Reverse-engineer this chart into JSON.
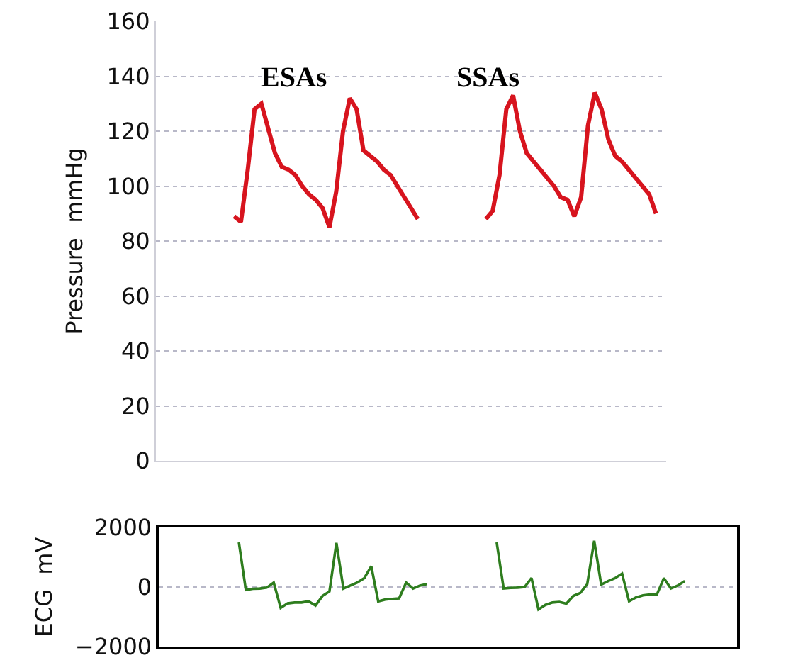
{
  "chart_data": [
    {
      "type": "line",
      "ylabel": "Pressure  mmHg",
      "categories": [
        null,
        null,
        null,
        null,
        null,
        null,
        null,
        null,
        null,
        null,
        null,
        null,
        null,
        null,
        null,
        null,
        null,
        null,
        null,
        null,
        null,
        null,
        null,
        null,
        null,
        null,
        null,
        null,
        null,
        null,
        null,
        null,
        null,
        null,
        null,
        null,
        null,
        null,
        null,
        null,
        null,
        null,
        null,
        null,
        null,
        null,
        null,
        null,
        null,
        null,
        null,
        null,
        null,
        null,
        null,
        null,
        null,
        null,
        null,
        null,
        null,
        null,
        null,
        null,
        null,
        null,
        null,
        null,
        null,
        null,
        null,
        null,
        null,
        null,
        null
      ],
      "series": [
        {
          "color": "#d7141e",
          "values": [
            null,
            null,
            null,
            null,
            null,
            null,
            null,
            null,
            null,
            null,
            null,
            89,
            87,
            106,
            128,
            130,
            121,
            112,
            107,
            106,
            104,
            100,
            97,
            95,
            92,
            85,
            98,
            120,
            132,
            128,
            113,
            111,
            109,
            106,
            104,
            100,
            96,
            92,
            88,
            null,
            null,
            null,
            null,
            null,
            null,
            null,
            null,
            null,
            88,
            91,
            104,
            128,
            133,
            120,
            112,
            109,
            106,
            103,
            100,
            96,
            95,
            89,
            96,
            122,
            134,
            128,
            117,
            111,
            109,
            106,
            103,
            100,
            97,
            90,
            null
          ]
        }
      ],
      "ylim": [
        0,
        160
      ],
      "yticks": [
        0,
        20,
        40,
        60,
        80,
        100,
        120,
        140,
        160
      ],
      "grid": "y",
      "tick_labels": "y",
      "marker": "none",
      "line_style": "solid",
      "annotations": [
        "ESAs",
        "SSAs"
      ]
    },
    {
      "type": "line",
      "ylabel": "ECG  mV",
      "categories": [
        null,
        null,
        null,
        null,
        null,
        null,
        null,
        null,
        null,
        null,
        null,
        null,
        null,
        null,
        null,
        null,
        null,
        null,
        null,
        null,
        null,
        null,
        null,
        null,
        null,
        null,
        null,
        null,
        null,
        null,
        null,
        null,
        null,
        null,
        null,
        null,
        null,
        null,
        null,
        null,
        null,
        null,
        null,
        null,
        null,
        null,
        null,
        null,
        null,
        null,
        null,
        null,
        null,
        null,
        null,
        null,
        null,
        null,
        null,
        null,
        null,
        null,
        null,
        null,
        null,
        null,
        null,
        null,
        null,
        null,
        null,
        null,
        null,
        null,
        null,
        null,
        null,
        null,
        null,
        null,
        null,
        null,
        null
      ],
      "series": [
        {
          "color": "#2e7d1e",
          "values": [
            null,
            null,
            null,
            null,
            null,
            null,
            null,
            null,
            null,
            null,
            null,
            1500,
            -100,
            -60,
            -50,
            -20,
            150,
            -700,
            -550,
            -520,
            -520,
            -480,
            -620,
            -300,
            -150,
            1480,
            -50,
            50,
            150,
            300,
            700,
            -480,
            -420,
            -400,
            -380,
            150,
            -50,
            50,
            100,
            null,
            null,
            null,
            null,
            null,
            null,
            null,
            null,
            null,
            1500,
            -50,
            -30,
            -20,
            0,
            300,
            -750,
            -600,
            -520,
            -500,
            -560,
            -300,
            -200,
            100,
            1550,
            80,
            200,
            300,
            450,
            -480,
            -350,
            -280,
            -250,
            -250,
            300,
            -50,
            50,
            200,
            null,
            null,
            null,
            null,
            null,
            null,
            null
          ]
        }
      ],
      "ylim": [
        -2000,
        2000
      ],
      "yticks": [
        {
          "value": -2000,
          "label": "−2000"
        },
        0,
        2000
      ],
      "grid": "y",
      "tick_labels": "y",
      "marker": "none",
      "line_style": "solid"
    }
  ]
}
